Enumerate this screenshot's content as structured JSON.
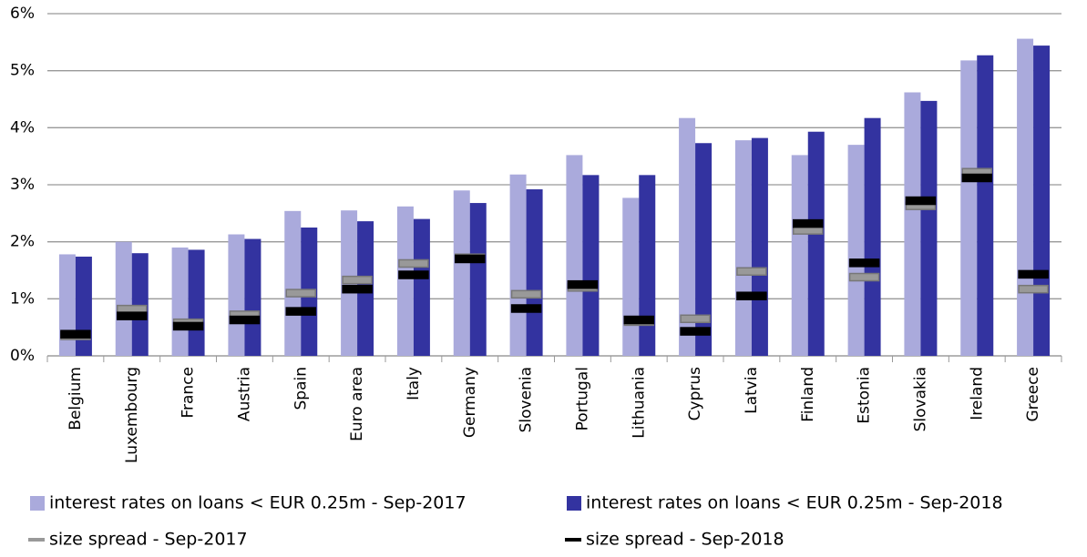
{
  "chart_data": {
    "type": "bar",
    "categories": [
      "Belgium",
      "Luxembourg",
      "France",
      "Austria",
      "Spain",
      "Euro area",
      "Italy",
      "Germany",
      "Slovenia",
      "Portugal",
      "Lithuania",
      "Cyprus",
      "Latvia",
      "Finland",
      "Estonia",
      "Slovakia",
      "Ireland",
      "Greece"
    ],
    "series": [
      {
        "name": "interest rates on loans < EUR 0.25m - Sep-2017",
        "color": "#aaaadc",
        "style": "bar",
        "values": [
          1.78,
          2.0,
          1.9,
          2.13,
          2.54,
          2.55,
          2.62,
          2.9,
          3.18,
          3.52,
          2.77,
          4.17,
          3.78,
          3.52,
          3.7,
          4.62,
          5.18,
          5.56
        ]
      },
      {
        "name": "interest rates on loans < EUR 0.25m - Sep-2018",
        "color": "#3333a0",
        "style": "bar",
        "values": [
          1.74,
          1.8,
          1.86,
          2.05,
          2.25,
          2.36,
          2.4,
          2.68,
          2.92,
          3.17,
          3.17,
          3.73,
          3.82,
          3.93,
          4.17,
          4.47,
          5.27,
          5.44
        ]
      },
      {
        "name": "size spread - Sep-2017",
        "color": "#999999",
        "style": "dash",
        "values": [
          0.35,
          0.82,
          0.58,
          0.72,
          1.1,
          1.33,
          1.62,
          1.72,
          1.08,
          1.2,
          0.6,
          0.65,
          1.48,
          2.2,
          1.38,
          2.63,
          3.22,
          1.17
        ]
      },
      {
        "name": "size spread - Sep-2018",
        "color": "#000000",
        "style": "dash",
        "values": [
          0.38,
          0.7,
          0.52,
          0.63,
          0.78,
          1.17,
          1.42,
          1.7,
          0.83,
          1.25,
          0.63,
          0.43,
          1.05,
          2.32,
          1.63,
          2.72,
          3.12,
          1.43
        ]
      }
    ],
    "ylim": [
      0,
      6
    ],
    "yticks": [
      {
        "value": 0,
        "label": "0%"
      },
      {
        "value": 1,
        "label": "1%"
      },
      {
        "value": 2,
        "label": "2%"
      },
      {
        "value": 3,
        "label": "3%"
      },
      {
        "value": 4,
        "label": "4%"
      },
      {
        "value": 5,
        "label": "5%"
      },
      {
        "value": 6,
        "label": "6%"
      }
    ],
    "grid": true
  }
}
